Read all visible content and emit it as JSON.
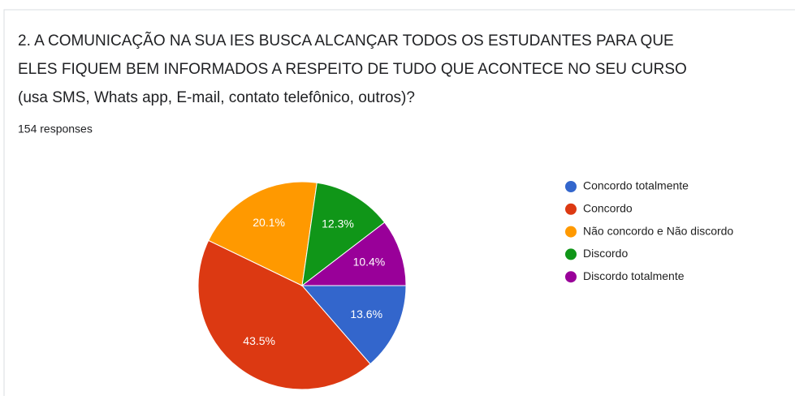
{
  "chart_data": {
    "type": "pie",
    "title_lines": [
      "2. A COMUNICAÇÃO NA SUA IES BUSCA ALCANÇAR TODOS OS ESTUDANTES PARA QUE",
      "ELES FIQUEM BEM INFORMADOS A RESPEITO DE TUDO QUE ACONTECE NO SEU CURSO",
      "(usa SMS, Whats app, E-mail, contato telefônico, outros)?"
    ],
    "subtitle": "154 responses",
    "categories": [
      "Concordo totalmente",
      "Concordo",
      "Não concordo e Não discordo",
      "Discordo",
      "Discordo totalmente"
    ],
    "values": [
      13.6,
      43.5,
      20.1,
      12.3,
      10.4
    ],
    "value_labels": [
      "13.6%",
      "43.5%",
      "20.1%",
      "12.3%",
      "10.4%"
    ],
    "colors": [
      "#3366cc",
      "#dc3912",
      "#ff9900",
      "#109618",
      "#990099"
    ],
    "legend": "right"
  }
}
